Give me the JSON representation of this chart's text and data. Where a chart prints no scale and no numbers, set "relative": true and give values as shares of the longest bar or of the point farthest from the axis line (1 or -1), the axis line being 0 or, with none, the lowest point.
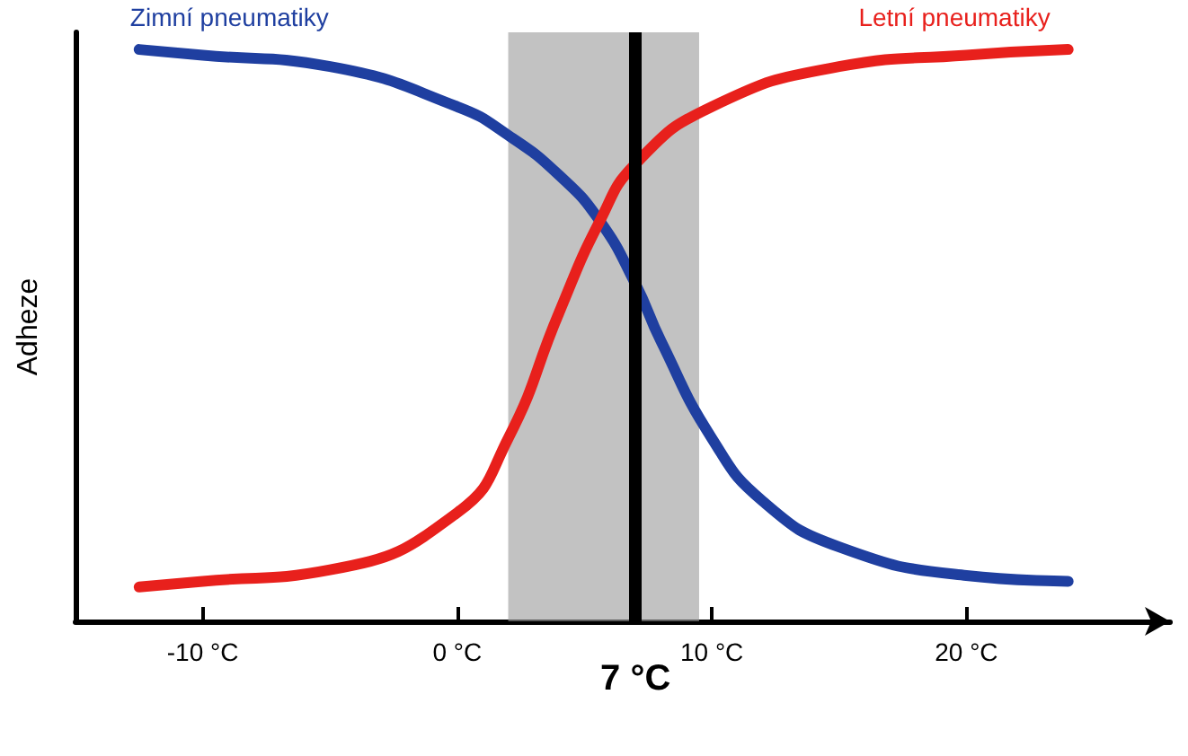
{
  "chart_data": {
    "type": "line",
    "relative": true,
    "ylabel": "Adheze",
    "xlim": [
      -15,
      28
    ],
    "xticks": [
      {
        "value": -10,
        "label": "-10 °C"
      },
      {
        "value": 0,
        "label": "0 °C"
      },
      {
        "value": 10,
        "label": "10 °C"
      },
      {
        "value": 20,
        "label": "20 °C"
      }
    ],
    "series": [
      {
        "name": "Zimní pneumatiky",
        "color": "#1f3fa0",
        "x": [
          -12.5,
          -10,
          -5,
          0,
          2,
          4,
          5.6,
          7,
          8,
          10,
          12,
          15,
          20,
          24
        ],
        "values": [
          1.0,
          0.99,
          0.97,
          0.9,
          0.85,
          0.78,
          0.7,
          0.59,
          0.49,
          0.32,
          0.21,
          0.13,
          0.08,
          0.07
        ]
      },
      {
        "name": "Letní pneumatiky",
        "color": "#e8201c",
        "x": [
          -12.5,
          -10,
          -5,
          0,
          2,
          4,
          5.6,
          7,
          10,
          15,
          20,
          24
        ],
        "values": [
          0.06,
          0.07,
          0.09,
          0.19,
          0.32,
          0.54,
          0.7,
          0.8,
          0.9,
          0.97,
          0.99,
          1.0
        ]
      }
    ],
    "ref_lines": [
      {
        "axis": "x",
        "value": 7,
        "label": "7 °C",
        "color": "#000000"
      }
    ],
    "bands": [
      {
        "axis": "x",
        "from": 2,
        "to": 9.5,
        "color": "#9a9a9a"
      }
    ],
    "grid": false,
    "legend": false,
    "marker": "none",
    "line_style": "solid"
  }
}
